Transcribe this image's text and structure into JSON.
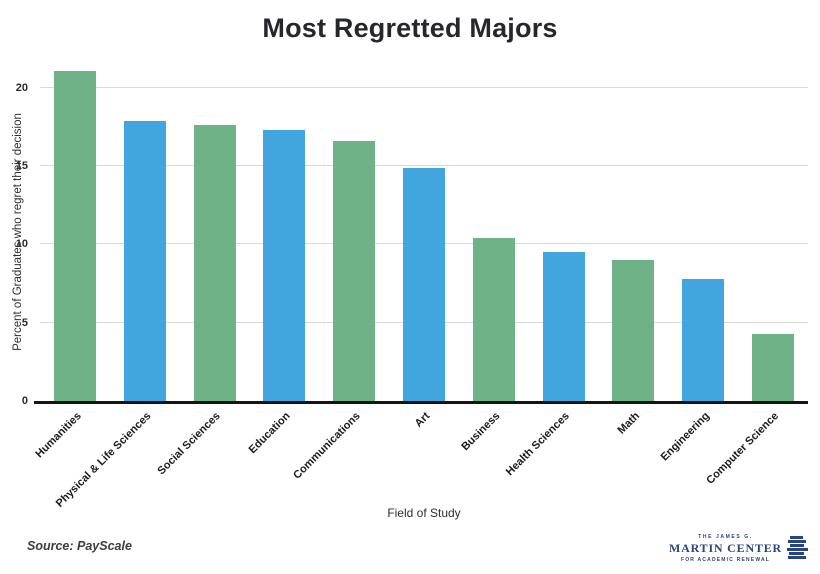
{
  "title": "Most Regretted Majors",
  "source_note": "Source: PayScale",
  "logo": {
    "line1": "THE JAMES G.",
    "line2": "MARTIN CENTER",
    "line3": "FOR ACADEMIC RENEWAL",
    "color": "#29457f"
  },
  "chart_data": {
    "type": "bar",
    "title": "Most Regretted Majors",
    "xlabel": "Field of Study",
    "ylabel": "Percent of Graduates who regret their decision",
    "categories": [
      "Humanities",
      "Physical & Life Sciences",
      "Social Sciences",
      "Education",
      "Communications",
      "Art",
      "Business",
      "Health Sciences",
      "Math",
      "Engineering",
      "Computer Science"
    ],
    "values": [
      21.1,
      17.9,
      17.6,
      17.3,
      16.6,
      14.9,
      10.4,
      9.5,
      9.0,
      7.8,
      4.3
    ],
    "bar_colors": [
      "#6FB288",
      "#41A5DE",
      "#6FB288",
      "#41A5DE",
      "#6FB288",
      "#41A5DE",
      "#6FB288",
      "#41A5DE",
      "#6FB288",
      "#41A5DE",
      "#6FB288"
    ],
    "palette": {
      "green": "#6FB288",
      "blue": "#41A5DE"
    },
    "yticks": [
      0,
      5,
      10,
      15,
      20
    ],
    "ylim": [
      0,
      21.9
    ],
    "grid": "horizontal",
    "gridline_color": "#d9d9d9",
    "legend": "none"
  }
}
